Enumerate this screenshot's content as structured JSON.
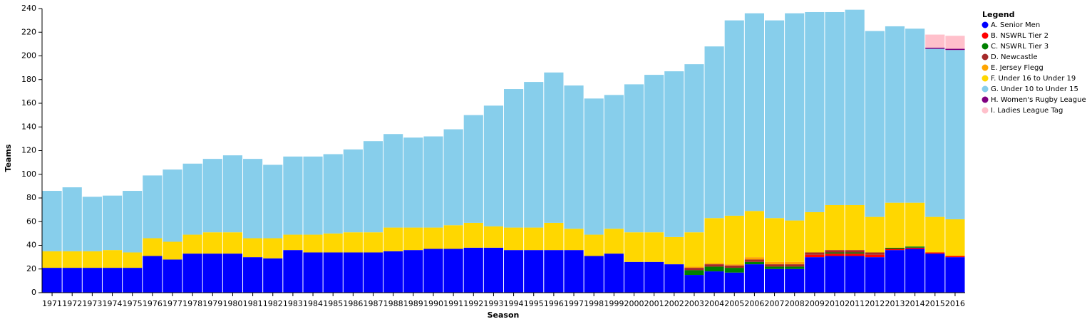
{
  "chart_data": {
    "type": "stacked_bar",
    "x_label": "Season",
    "y_label": "Teams",
    "legend_title": "Legend",
    "legend_position": "right",
    "categories": [
      "1971",
      "1972",
      "1973",
      "1974",
      "1975",
      "1976",
      "1977",
      "1978",
      "1979",
      "1980",
      "1981",
      "1982",
      "1983",
      "1984",
      "1985",
      "1986",
      "1987",
      "1988",
      "1989",
      "1990",
      "1991",
      "1992",
      "1993",
      "1994",
      "1995",
      "1996",
      "1997",
      "1998",
      "1999",
      "2000",
      "2001",
      "2002",
      "2003",
      "2004",
      "2005",
      "2006",
      "2007",
      "2008",
      "2009",
      "2010",
      "2011",
      "2012",
      "2013",
      "2014",
      "2015",
      "2016"
    ],
    "ylim": [
      0,
      240
    ],
    "yticks": [
      0,
      20,
      40,
      60,
      80,
      100,
      120,
      140,
      160,
      180,
      200,
      220,
      240
    ],
    "series": [
      {
        "name": "A. Senior Men",
        "color": "#0000ff",
        "values": [
          21,
          21,
          21,
          21,
          21,
          31,
          28,
          33,
          33,
          33,
          30,
          29,
          36,
          34,
          34,
          34,
          34,
          35,
          36,
          37,
          37,
          38,
          38,
          36,
          36,
          36,
          36,
          31,
          33,
          26,
          26,
          24,
          15,
          18,
          17,
          24,
          20,
          20,
          30,
          31,
          31,
          30,
          36,
          37,
          33,
          30
        ]
      },
      {
        "name": "B. NSWRL Tier 2",
        "color": "#ff0000",
        "values": [
          0,
          0,
          0,
          0,
          0,
          0,
          0,
          0,
          0,
          0,
          0,
          0,
          0,
          0,
          0,
          0,
          0,
          0,
          0,
          0,
          0,
          0,
          0,
          0,
          0,
          0,
          0,
          0,
          0,
          0,
          0,
          0,
          0,
          0,
          0,
          0,
          0,
          0,
          2,
          2,
          2,
          2,
          1,
          1,
          1,
          1
        ]
      },
      {
        "name": "C. NSWRL Tier 3",
        "color": "#008000",
        "values": [
          0,
          0,
          0,
          0,
          0,
          0,
          0,
          0,
          0,
          0,
          0,
          0,
          0,
          0,
          0,
          0,
          0,
          0,
          0,
          0,
          0,
          0,
          0,
          0,
          0,
          0,
          0,
          0,
          0,
          0,
          0,
          0,
          4,
          4,
          4,
          2,
          2,
          2,
          0,
          1,
          1,
          0,
          1,
          1,
          0,
          0
        ]
      },
      {
        "name": "D. Newcastle",
        "color": "#a52a2a",
        "values": [
          0,
          0,
          0,
          0,
          0,
          0,
          0,
          0,
          0,
          0,
          0,
          0,
          0,
          0,
          0,
          0,
          0,
          0,
          0,
          0,
          0,
          0,
          0,
          0,
          0,
          0,
          0,
          0,
          0,
          0,
          0,
          0,
          2,
          2,
          2,
          2,
          2,
          2,
          2,
          2,
          2,
          2,
          0,
          0,
          0,
          0
        ]
      },
      {
        "name": "E. Jersey Flegg",
        "color": "#ffa500",
        "values": [
          0,
          0,
          0,
          0,
          0,
          0,
          0,
          0,
          0,
          0,
          0,
          0,
          0,
          0,
          0,
          0,
          0,
          0,
          0,
          0,
          0,
          0,
          0,
          0,
          0,
          0,
          0,
          0,
          0,
          0,
          0,
          0,
          1,
          1,
          1,
          2,
          2,
          2,
          0,
          0,
          0,
          0,
          0,
          0,
          0,
          0
        ]
      },
      {
        "name": "F. Under 16 to Under 19",
        "color": "#ffd700",
        "values": [
          14,
          14,
          14,
          15,
          13,
          15,
          15,
          16,
          18,
          18,
          16,
          17,
          13,
          15,
          16,
          17,
          17,
          20,
          19,
          18,
          20,
          21,
          18,
          19,
          19,
          23,
          18,
          18,
          21,
          25,
          25,
          23,
          29,
          38,
          41,
          39,
          37,
          35,
          34,
          38,
          38,
          30,
          38,
          37,
          30,
          31
        ]
      },
      {
        "name": "G. Under 10 to Under 15",
        "color": "#87ceeb",
        "values": [
          51,
          54,
          46,
          46,
          52,
          53,
          61,
          60,
          62,
          65,
          67,
          62,
          66,
          66,
          67,
          70,
          77,
          79,
          76,
          77,
          81,
          91,
          102,
          117,
          123,
          127,
          121,
          115,
          113,
          125,
          133,
          140,
          142,
          145,
          165,
          167,
          167,
          175,
          169,
          163,
          165,
          157,
          149,
          147,
          142,
          143
        ]
      },
      {
        "name": "H. Women's Rugby League",
        "color": "#800080",
        "values": [
          0,
          0,
          0,
          0,
          0,
          0,
          0,
          0,
          0,
          0,
          0,
          0,
          0,
          0,
          0,
          0,
          0,
          0,
          0,
          0,
          0,
          0,
          0,
          0,
          0,
          0,
          0,
          0,
          0,
          0,
          0,
          0,
          0,
          0,
          0,
          0,
          0,
          0,
          0,
          0,
          0,
          0,
          0,
          0,
          1,
          1
        ]
      },
      {
        "name": "I. Ladies League Tag",
        "color": "#ffc0cb",
        "values": [
          0,
          0,
          0,
          0,
          0,
          0,
          0,
          0,
          0,
          0,
          0,
          0,
          0,
          0,
          0,
          0,
          0,
          0,
          0,
          0,
          0,
          0,
          0,
          0,
          0,
          0,
          0,
          0,
          0,
          0,
          0,
          0,
          0,
          0,
          0,
          0,
          0,
          0,
          0,
          0,
          0,
          0,
          0,
          0,
          11,
          11
        ]
      }
    ]
  }
}
